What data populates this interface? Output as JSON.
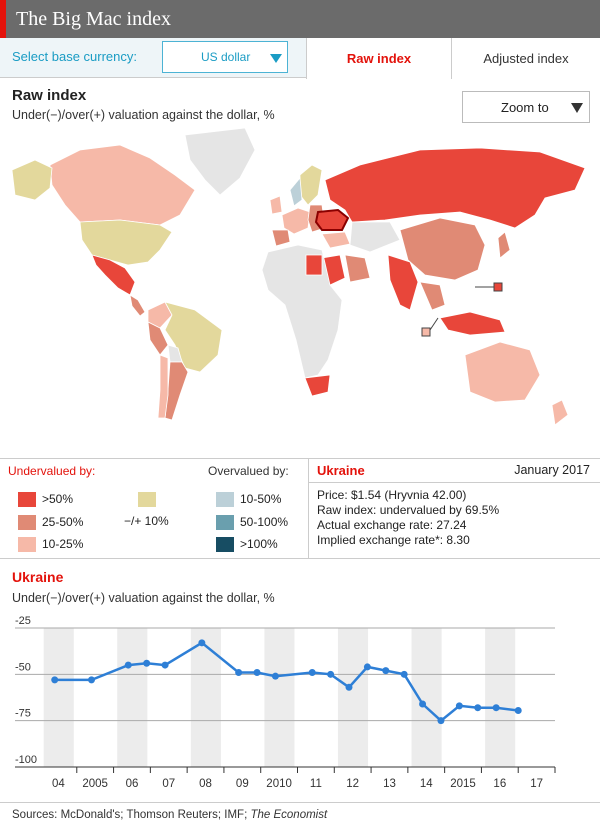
{
  "header": {
    "title": "The Big Mac index"
  },
  "controls": {
    "base_label": "Select base currency:",
    "base_currency": "US dollar",
    "tabs": [
      {
        "label": "Raw index",
        "active": true
      },
      {
        "label": "Adjusted index",
        "active": false
      }
    ]
  },
  "map": {
    "title": "Raw index",
    "subtitle": "Under(−)/over(+) valuation against the dollar, %",
    "zoom_label": "Zoom to",
    "selected_country": "Ukraine"
  },
  "legend": {
    "undervalued_label": "Undervalued by:",
    "overvalued_label": "Overvalued by:",
    "neutral_label": "−/+ 10%",
    "undervalued": [
      {
        "label": ">50%",
        "color": "#e8463a"
      },
      {
        "label": "25-50%",
        "color": "#e08a75"
      },
      {
        "label": "10-25%",
        "color": "#f6b9a8"
      }
    ],
    "neutral_color": "#e3d89c",
    "overvalued": [
      {
        "label": "10-50%",
        "color": "#bcd0d8"
      },
      {
        "label": "50-100%",
        "color": "#6a9fae"
      },
      {
        "label": ">100%",
        "color": "#174d63"
      }
    ]
  },
  "info": {
    "country": "Ukraine",
    "date": "January 2017",
    "price": "Price: $1.54 (Hryvnia 42.00)",
    "raw_index": "Raw index: undervalued by 69.5%",
    "actual_rate": "Actual exchange rate: 27.24",
    "implied_rate": "Implied exchange rate*: 8.30"
  },
  "chart_data": {
    "type": "line",
    "title": "Ukraine",
    "subtitle": "Under(−)/over(+) valuation against the dollar, %",
    "x_tick_labels": [
      "04",
      "2005",
      "06",
      "07",
      "08",
      "09",
      "2010",
      "11",
      "12",
      "13",
      "14",
      "2015",
      "16",
      "17"
    ],
    "y_ticks": [
      -25,
      -50,
      -75,
      -100
    ],
    "ylim": [
      -100,
      -25
    ],
    "grid": true,
    "series": [
      {
        "color": "#2e7fd6",
        "points": [
          [
            2004.4,
            -53
          ],
          [
            2005.4,
            -53
          ],
          [
            2006.4,
            -45
          ],
          [
            2006.9,
            -44
          ],
          [
            2007.4,
            -45
          ],
          [
            2008.4,
            -33
          ],
          [
            2009.4,
            -49
          ],
          [
            2009.9,
            -49
          ],
          [
            2010.4,
            -51
          ],
          [
            2011.4,
            -49
          ],
          [
            2011.9,
            -50
          ],
          [
            2012.4,
            -57
          ],
          [
            2012.9,
            -46
          ],
          [
            2013.4,
            -48
          ],
          [
            2013.9,
            -50
          ],
          [
            2014.4,
            -66
          ],
          [
            2014.9,
            -75
          ],
          [
            2015.4,
            -67
          ],
          [
            2015.9,
            -68
          ],
          [
            2016.4,
            -68
          ],
          [
            2017.0,
            -69.5
          ]
        ]
      }
    ]
  },
  "source": {
    "prefix": "Sources: McDonald's; Thomson Reuters; IMF; ",
    "italic": "The Economist"
  }
}
